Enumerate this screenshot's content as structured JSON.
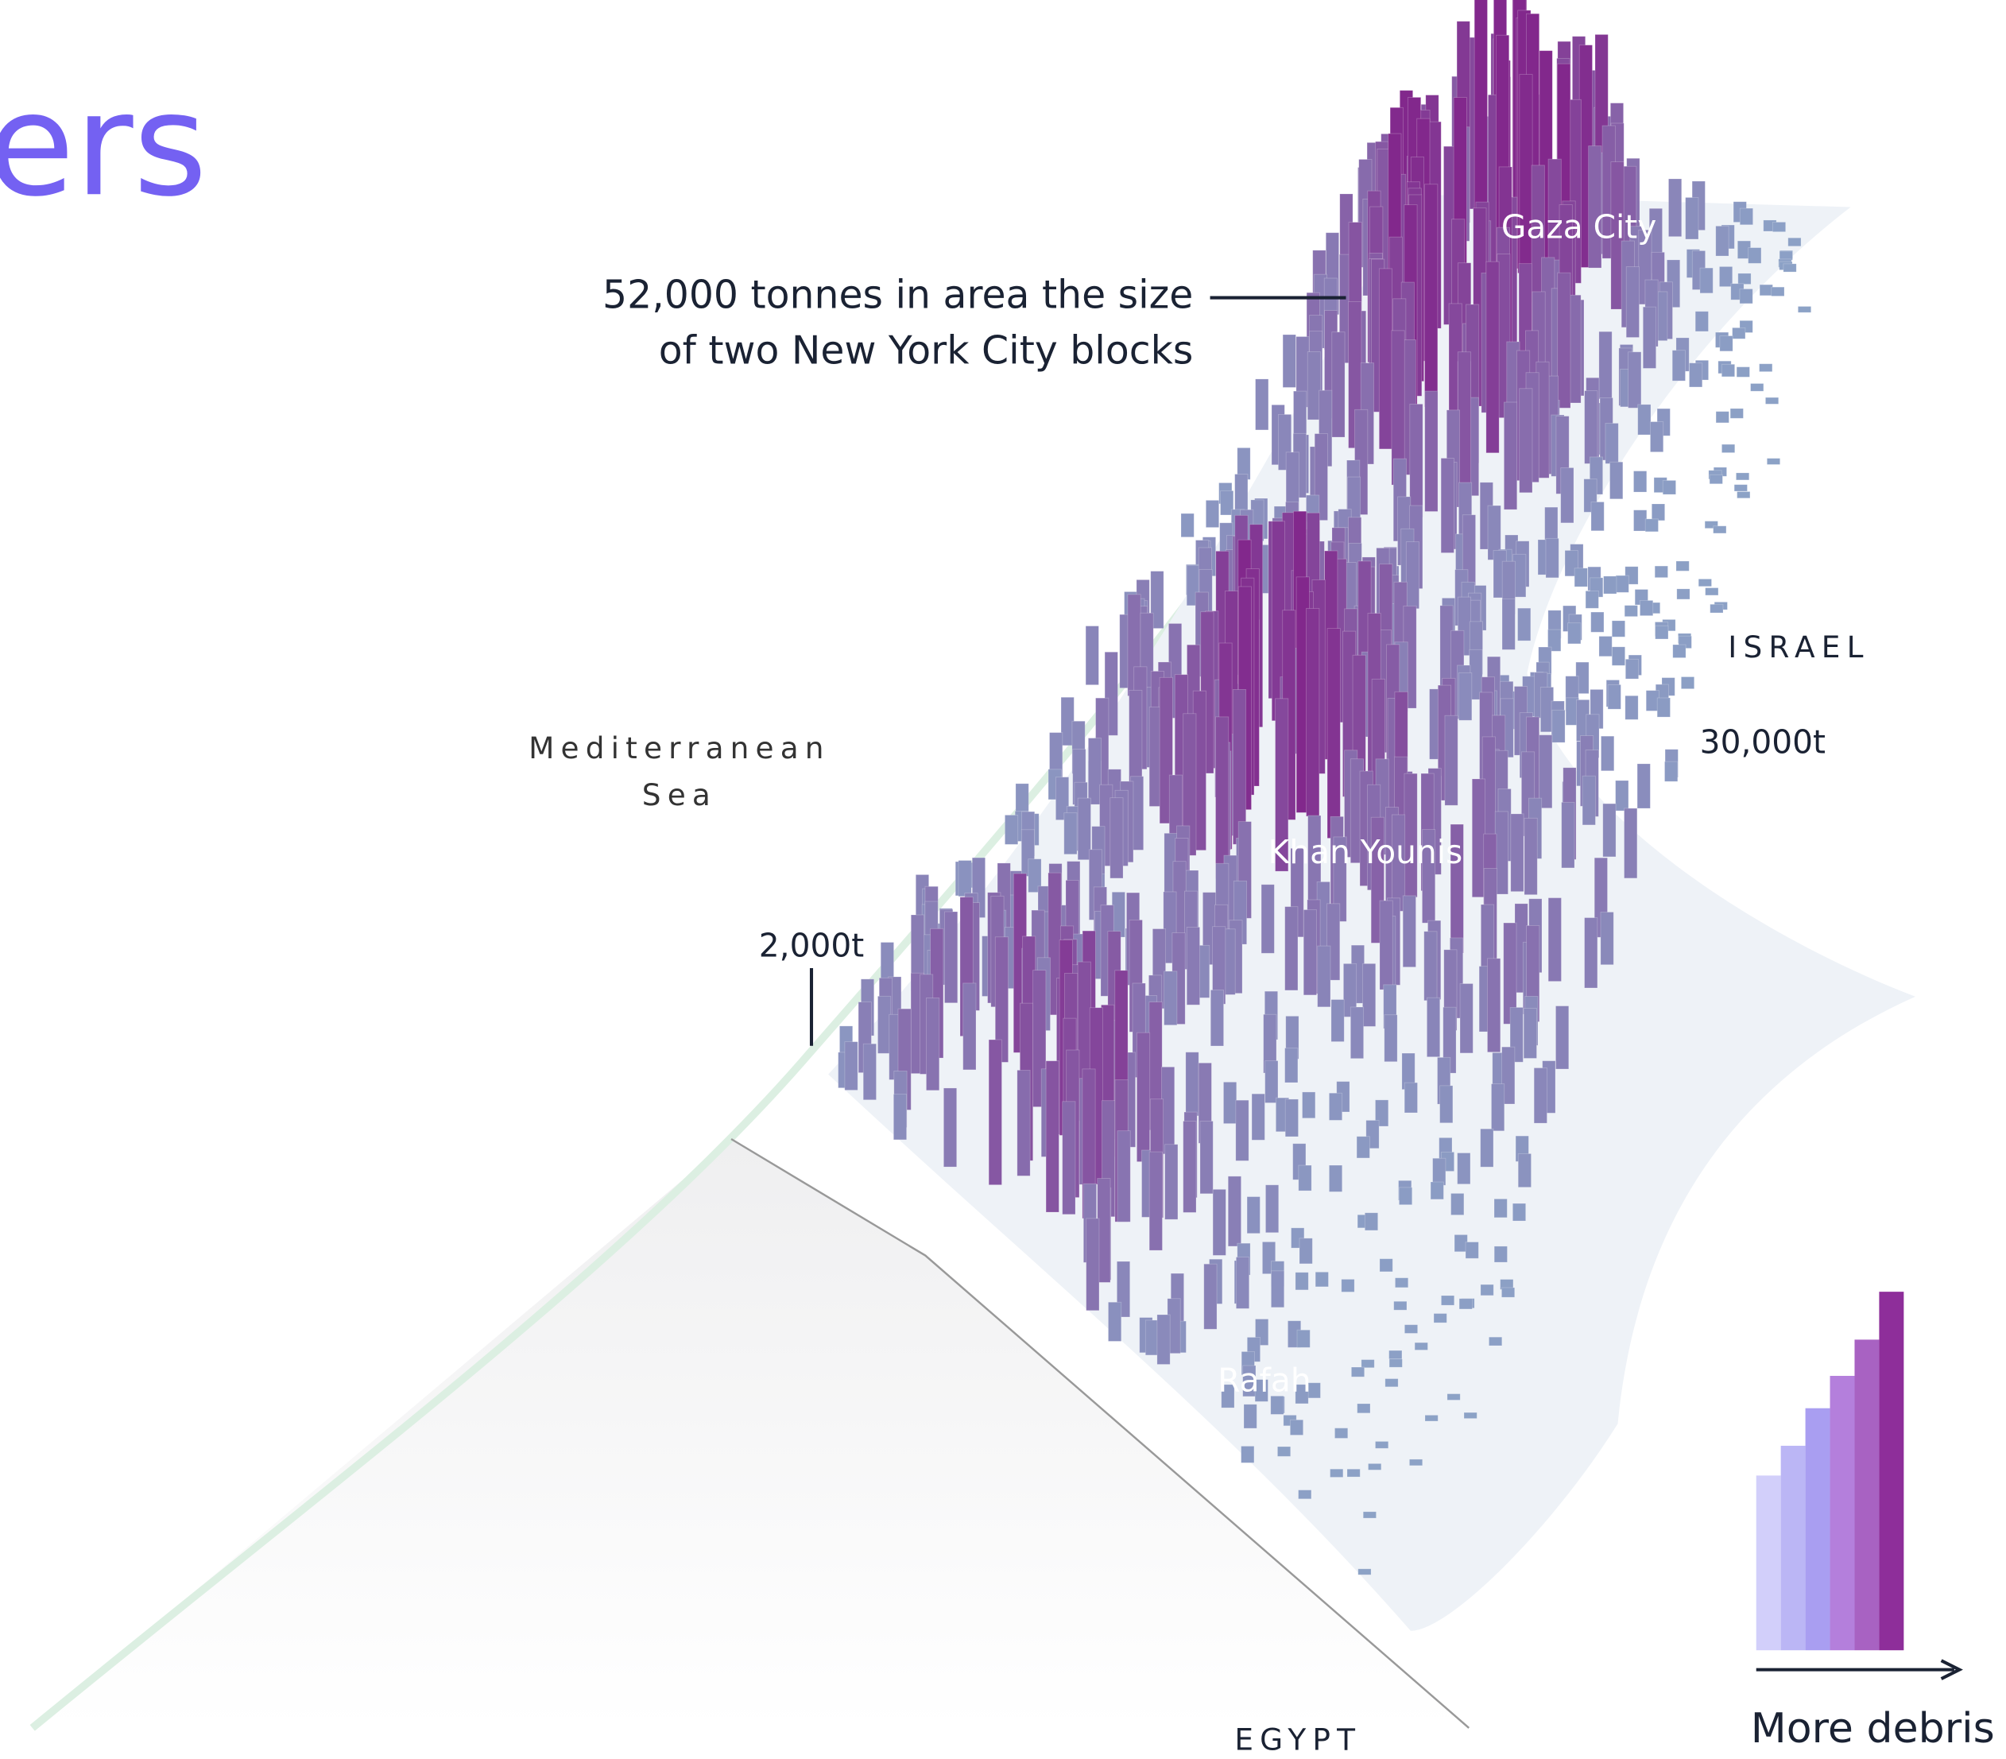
{
  "title_fragment": "ers",
  "annotation": {
    "line1": "52,000 tonnes in area the size",
    "line2": "of two New York City blocks"
  },
  "places": {
    "gaza_city": "Gaza City",
    "khan_younis": "Khan Younis",
    "rafah": "Rafah",
    "israel": "ISRAEL",
    "egypt": "EGYPT",
    "sea_line1": "Mediterranean",
    "sea_line2": "Sea"
  },
  "scale_labels": {
    "high": "30,000t",
    "low": "2,000t"
  },
  "legend": {
    "label": "More debris"
  }
}
